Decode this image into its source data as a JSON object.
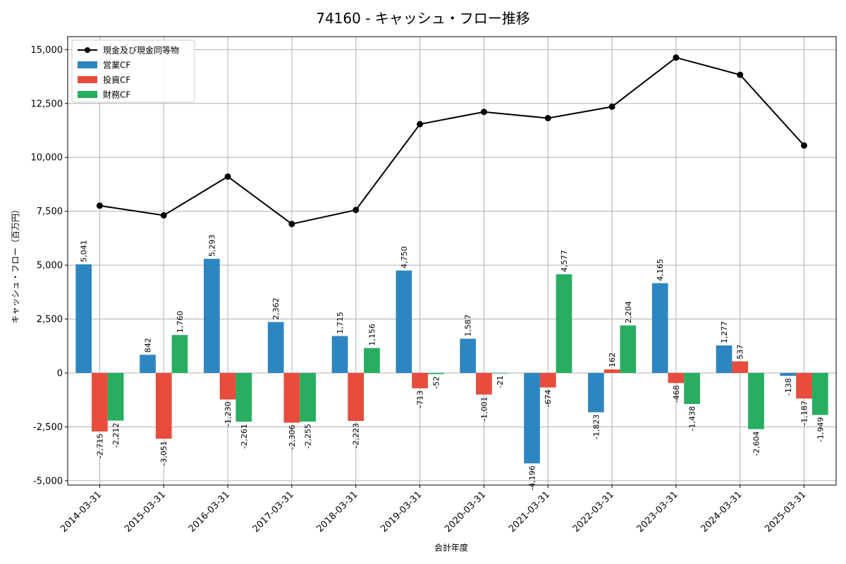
{
  "chart_data": {
    "type": "bar",
    "title": "74160 - キャッシュ・フロー推移",
    "xlabel": "会計年度",
    "ylabel": "キャッシュ・フロー（百万円）",
    "categories": [
      "2014-03-31",
      "2015-03-31",
      "2016-03-31",
      "2017-03-31",
      "2018-03-31",
      "2019-03-31",
      "2020-03-31",
      "2021-03-31",
      "2022-03-31",
      "2023-03-31",
      "2024-03-31",
      "2025-03-31"
    ],
    "ylim": [
      -5200,
      15600
    ],
    "yticks": [
      -5000,
      -2500,
      0,
      2500,
      5000,
      7500,
      10000,
      12500,
      15000
    ],
    "ytick_labels": [
      "-5,000",
      "-2,500",
      "0",
      "2,500",
      "5,000",
      "7,500",
      "10,000",
      "12,500",
      "15,000"
    ],
    "grid": true,
    "legend_position": "top-left",
    "series": [
      {
        "name": "営業CF",
        "kind": "bar",
        "color": "#2e86c1",
        "values": [
          5041,
          842,
          5293,
          2362,
          1715,
          4750,
          1587,
          -4196,
          -1823,
          4165,
          1277,
          -138
        ],
        "labels": [
          "5,041",
          "842",
          "5,293",
          "2,362",
          "1,715",
          "4,750",
          "1,587",
          "-4,196",
          "-1,823",
          "4,165",
          "1,277",
          "-138"
        ]
      },
      {
        "name": "投資CF",
        "kind": "bar",
        "color": "#e74c3c",
        "values": [
          -2715,
          -3051,
          -1230,
          -2306,
          -2223,
          -713,
          -1001,
          -674,
          162,
          -468,
          537,
          -1187
        ],
        "labels": [
          "-2,715",
          "-3,051",
          "-1,230",
          "-2,306",
          "-2,223",
          "-713",
          "-1,001",
          "-674",
          "162",
          "-468",
          "537",
          "-1,187"
        ]
      },
      {
        "name": "財務CF",
        "kind": "bar",
        "color": "#27ae60",
        "values": [
          -2212,
          1760,
          -2261,
          -2255,
          1156,
          -52,
          -21,
          4577,
          2204,
          -1438,
          -2604,
          -1949
        ],
        "labels": [
          "-2,212",
          "1,760",
          "-2,261",
          "-2,255",
          "1,156",
          "-52",
          "-21",
          "4,577",
          "2,204",
          "-1,438",
          "-2,604",
          "-1,949"
        ]
      },
      {
        "name": "現金及び現金同等物",
        "kind": "line",
        "color": "#000000",
        "values": [
          7760,
          7310,
          9110,
          6910,
          7560,
          11540,
          12110,
          11820,
          12350,
          14630,
          13830,
          10550
        ]
      }
    ]
  }
}
